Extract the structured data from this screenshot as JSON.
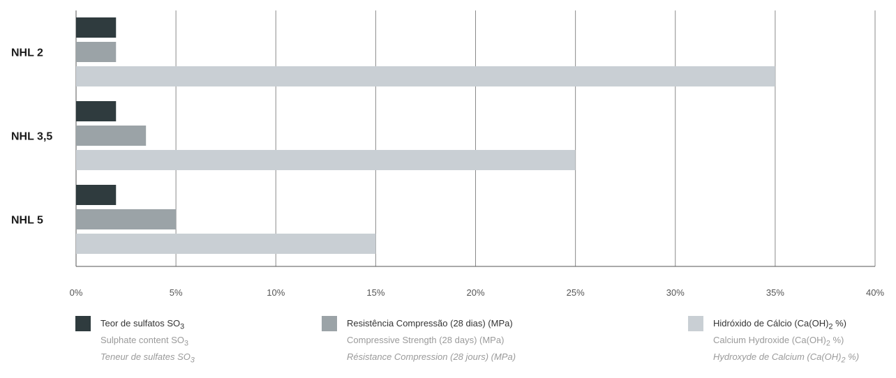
{
  "chart_data": {
    "type": "bar",
    "orientation": "horizontal",
    "categories": [
      "NHL 2",
      "NHL 3,5",
      "NHL 5"
    ],
    "series": [
      {
        "name": "Teor de sulfatos SO3",
        "color": "#2f3b3e",
        "values": [
          2,
          2,
          2
        ]
      },
      {
        "name": "Resistência Compressão (28 dias) (MPa)",
        "color": "#9ba3a7",
        "values": [
          2,
          3.5,
          5
        ]
      },
      {
        "name": "Hidróxido de Cálcio (Ca(OH)2 %)",
        "color": "#c9cfd4",
        "values": [
          35,
          25,
          15
        ]
      }
    ],
    "xlim": [
      0,
      40
    ],
    "xticks": [
      "0%",
      "5%",
      "10%",
      "15%",
      "20%",
      "25%",
      "30%",
      "35%",
      "40%"
    ],
    "grid": "vertical"
  },
  "legend": [
    {
      "color": "#2f3b3e",
      "pt": "Teor de sulfatos SO",
      "en": "Sulphate content  SO",
      "fr": "Teneur de sulfates  SO",
      "sub": "3",
      "suffix": ""
    },
    {
      "color": "#9ba3a7",
      "pt": "Resistência Compressão (28 dias) (MPa)",
      "en": "Compressive Strength (28 days) (MPa)",
      "fr": "Résistance Compression (28 jours) (MPa)",
      "sub": "",
      "suffix": ""
    },
    {
      "color": "#c9cfd4",
      "pt": "Hidróxido de Cálcio (Ca(OH)",
      "en": "Calcium Hydroxide  (Ca(OH)",
      "fr": "Hydroxyde de Calcium  (Ca(OH)",
      "sub": "2",
      "suffix": " %)"
    }
  ]
}
